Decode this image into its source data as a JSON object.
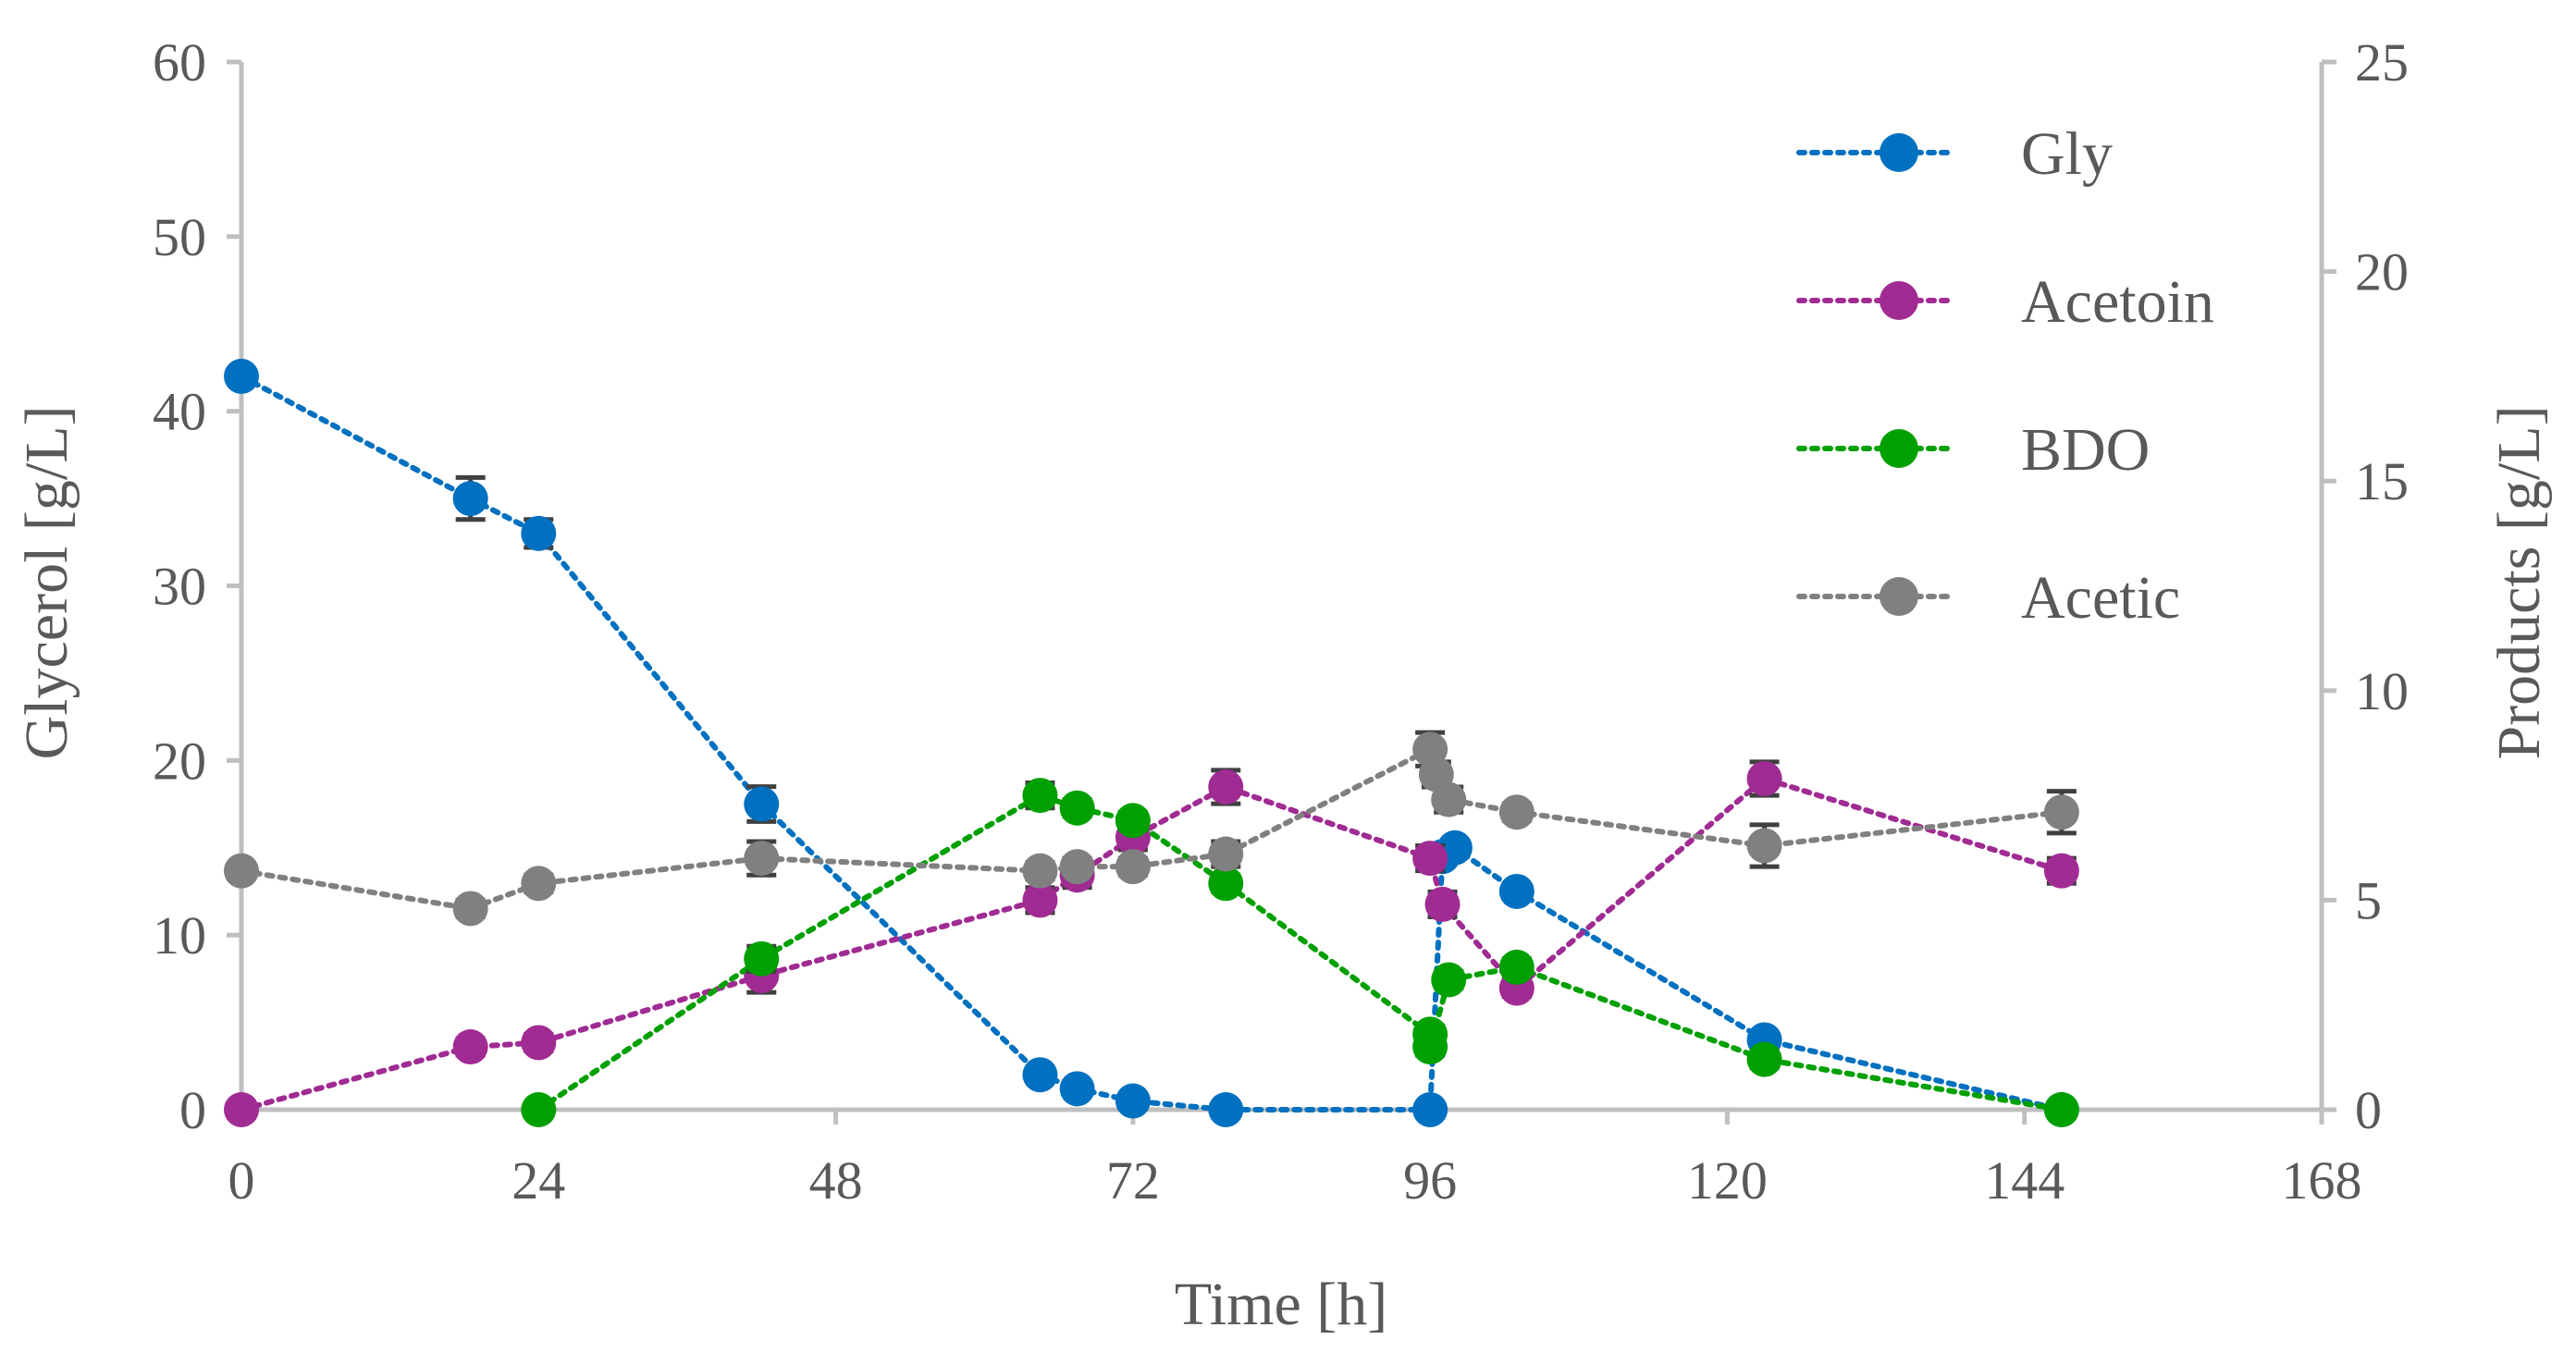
{
  "chart_data": {
    "type": "line",
    "title": "",
    "xlabel": "Time [h]",
    "ylabel_left": "Glycerol [g/L]",
    "ylabel_right": "Products [g/L]",
    "xlim": [
      0,
      168
    ],
    "ylim_left": [
      0,
      60
    ],
    "ylim_right": [
      0,
      25
    ],
    "x_ticks": [
      0,
      24,
      48,
      72,
      96,
      120,
      144,
      168
    ],
    "y_ticks_left": [
      0,
      10,
      20,
      30,
      40,
      50,
      60
    ],
    "y_ticks_right": [
      0,
      5,
      10,
      15,
      20,
      25
    ],
    "grid": false,
    "legend_position": "top-right",
    "series": [
      {
        "name": "Gly",
        "axis": "left",
        "color": "#0070c0",
        "x": [
          0,
          18.5,
          24,
          42,
          64.5,
          67.5,
          72,
          79.5,
          96,
          97,
          98,
          103,
          123,
          147
        ],
        "y": [
          42,
          35,
          33,
          17.5,
          2,
          1.2,
          0.5,
          0,
          0,
          14.5,
          15,
          12.5,
          4,
          0
        ],
        "err": [
          0,
          1.2,
          0.8,
          1,
          0,
          0,
          0,
          0,
          0,
          0,
          0,
          0,
          0,
          0
        ]
      },
      {
        "name": "Acetoin",
        "axis": "right",
        "color": "#a02b93",
        "x": [
          0,
          18.5,
          24,
          42,
          64.5,
          67.5,
          72,
          79.5,
          96,
          97,
          103,
          123,
          147
        ],
        "y": [
          0,
          1.5,
          1.6,
          3.2,
          5,
          5.6,
          6.5,
          7.7,
          6,
          4.9,
          2.9,
          7.9,
          5.7
        ],
        "err": [
          0,
          0.2,
          0.2,
          0.4,
          0.3,
          0.3,
          0.3,
          0.4,
          0.3,
          0.3,
          0.2,
          0.4,
          0.3
        ]
      },
      {
        "name": "BDO",
        "axis": "right",
        "color": "#00a000",
        "x": [
          24,
          42,
          64.5,
          67.5,
          72,
          79.5,
          96,
          96,
          97.5,
          103,
          123,
          147
        ],
        "y": [
          0,
          3.6,
          7.5,
          7.2,
          6.9,
          5.4,
          1.8,
          1.5,
          3.1,
          3.4,
          1.2,
          0
        ],
        "err": [
          0,
          0.3,
          0.3,
          0.2,
          0.2,
          0.2,
          0.2,
          0.2,
          0.2,
          0.2,
          0.2,
          0
        ]
      },
      {
        "name": "Acetic",
        "axis": "right",
        "color": "#808080",
        "x": [
          0,
          18.5,
          24,
          42,
          64.5,
          67.5,
          72,
          79.5,
          96,
          96.5,
          97.5,
          103,
          123,
          147
        ],
        "y": [
          5.7,
          4.8,
          5.4,
          6,
          5.7,
          5.8,
          5.8,
          6.1,
          8.6,
          8,
          7.4,
          7.1,
          6.3,
          7.1
        ],
        "err": [
          0,
          0.2,
          0.2,
          0.4,
          0.2,
          0.2,
          0.2,
          0.3,
          0.4,
          0.3,
          0.3,
          0.2,
          0.5,
          0.5
        ]
      }
    ]
  }
}
